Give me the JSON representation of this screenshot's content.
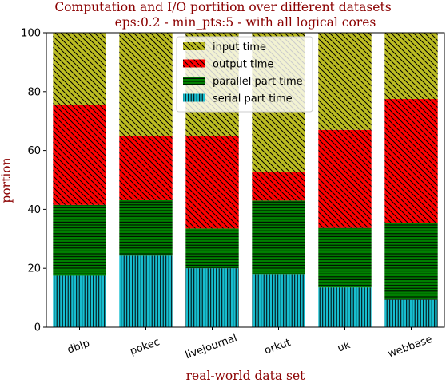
{
  "chart_data": {
    "type": "bar",
    "stacked": true,
    "title": "Computation and I/O portition over different datasets",
    "subtitle": "eps:0.2 - min_pts:5 - with all logical cores",
    "xlabel": "real-world data set",
    "ylabel": "portion",
    "ylim": [
      0,
      100
    ],
    "yticks": [
      "0",
      "20",
      "40",
      "60",
      "80",
      "100"
    ],
    "grid": false,
    "legend_position": "top-center",
    "categories": [
      "dblp",
      "pokec",
      "livejournal",
      "orkut",
      "uk",
      "webbase"
    ],
    "series": [
      {
        "name": "serial part time",
        "values": [
          17.5,
          24.3,
          20.0,
          17.8,
          13.5,
          9.3
        ],
        "color": "#17becf",
        "pattern": "vertical-lines"
      },
      {
        "name": "parallel part time",
        "values": [
          24.0,
          18.8,
          13.5,
          25.2,
          20.2,
          26.0
        ],
        "color": "#008000",
        "pattern": "horizontal-lines"
      },
      {
        "name": "output time",
        "values": [
          34.0,
          21.8,
          31.5,
          9.8,
          33.3,
          42.2
        ],
        "color": "#ff0000",
        "pattern": "diagonal-lines"
      },
      {
        "name": "input time",
        "values": [
          24.5,
          35.1,
          35.0,
          47.2,
          33.0,
          22.5
        ],
        "color": "#bcbd22",
        "pattern": "diagonal-lines"
      }
    ],
    "legend_order": [
      "input time",
      "output time",
      "parallel part time",
      "serial part time"
    ],
    "title_color": "#8b0000"
  }
}
